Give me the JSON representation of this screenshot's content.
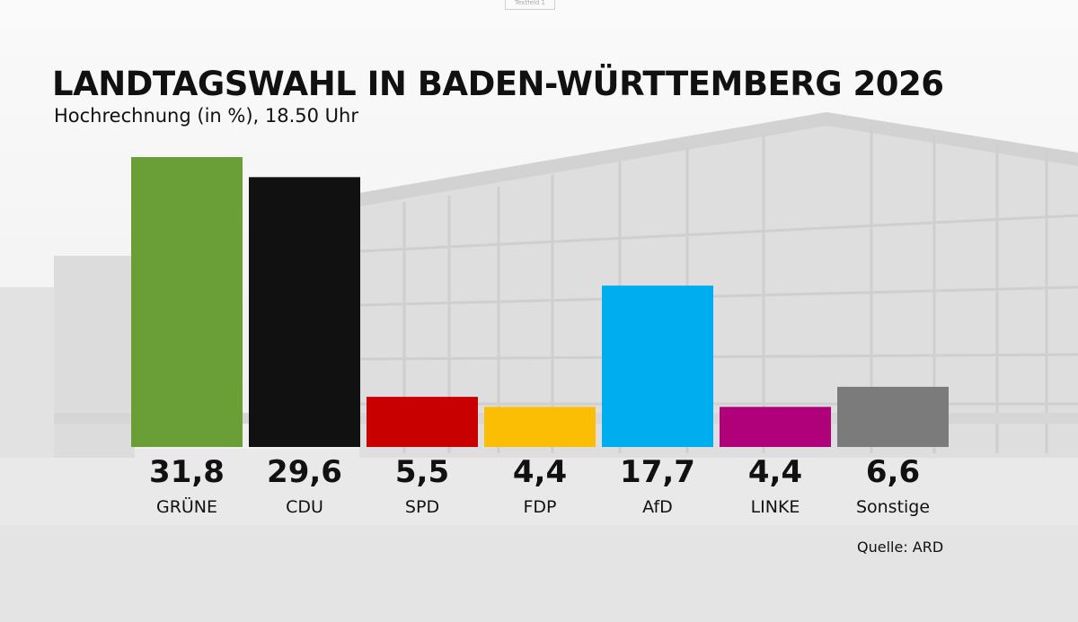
{
  "header": {
    "tag": "Textfeld 1",
    "title": "LANDTAGSWAHL IN BADEN-WÜRTTEMBERG 2026",
    "subtitle": "Hochrechnung (in %), 18.50 Uhr"
  },
  "footer": {
    "source": "Quelle: ARD"
  },
  "chart_data": {
    "type": "bar",
    "categories": [
      "GRÜNE",
      "CDU",
      "SPD",
      "FDP",
      "AfD",
      "LINKE",
      "Sonstige"
    ],
    "values": [
      31.8,
      29.6,
      5.5,
      4.4,
      17.7,
      4.4,
      6.6
    ],
    "value_labels": [
      "31,8",
      "29,6",
      "5,5",
      "4,4",
      "17,7",
      "4,4",
      "6,6"
    ],
    "colors": [
      "#6a9e36",
      "#111111",
      "#c80000",
      "#fcbd05",
      "#00aeef",
      "#b0007a",
      "#7b7b7b"
    ],
    "title": "LANDTAGSWAHL IN BADEN-WÜRTTEMBERG 2026",
    "subtitle": "Hochrechnung (in %), 18.50 Uhr",
    "xlabel": "",
    "ylabel": "",
    "grid": false,
    "legend": "none"
  }
}
